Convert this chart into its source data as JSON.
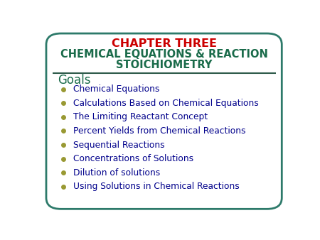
{
  "title_line1": "CHAPTER THREE",
  "title_line2": "CHEMICAL EQUATIONS & REACTION",
  "title_line3": "STOICHIOMETRY",
  "title_line1_color": "#cc0000",
  "title_line23_color": "#1a6b4a",
  "goals_label": "Goals",
  "goals_color": "#1a6b4a",
  "bullet_items": [
    "Chemical Equations",
    "Calculations Based on Chemical Equations",
    "The Limiting Reactant Concept",
    "Percent Yields from Chemical Reactions",
    "Sequential Reactions",
    "Concentrations of Solutions",
    "Dilution of solutions",
    "Using Solutions in Chemical Reactions"
  ],
  "bullet_color": "#00008b",
  "bullet_dot_color": "#999933",
  "background_color": "#ffffff",
  "border_color": "#2d7a6a",
  "separator_color": "#2d5a4a",
  "fig_width": 4.5,
  "fig_height": 3.38,
  "dpi": 100
}
